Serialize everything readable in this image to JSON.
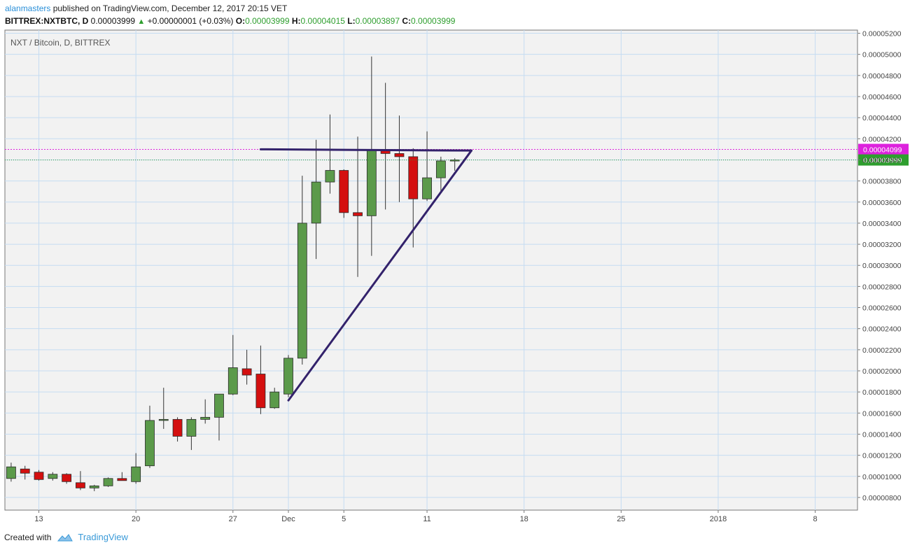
{
  "header": {
    "author": "alanmasters",
    "published_text": " published on TradingView.com, December 12, 2017 20:15 VET"
  },
  "ohlc_bar": {
    "symbol": "BITTREX:NXTBTC, D",
    "last": "0.00003999",
    "change": "+0.00000001 (+0.03%)",
    "o_label": "O:",
    "o": "0.00003999",
    "h_label": "H:",
    "h": "0.00004015",
    "l_label": "L:",
    "l": "0.00003897",
    "c_label": "C:",
    "c": "0.00003999"
  },
  "footer": {
    "created_with": "Created with",
    "brand": "TradingView"
  },
  "colors": {
    "up": "#5b9a4a",
    "down": "#d40f0f",
    "wick": "#333333",
    "trendline": "#33226b",
    "price_line": "#dd22dd",
    "last_price": "#2e9e2e",
    "grid": "#c5dcf2",
    "background": "#f2f2f2"
  },
  "chart_data": {
    "type": "candlestick",
    "title": "NXT / Bitcoin, D, BITTREX",
    "y_range": [
      7e-06,
      5.2e-06
    ],
    "ylim": [
      7e-06,
      5.23e-05
    ],
    "y_ticks": [
      "0.00000800",
      "0.00001000",
      "0.00001200",
      "0.00001400",
      "0.00001600",
      "0.00001800",
      "0.00002000",
      "0.00002200",
      "0.00002400",
      "0.00002600",
      "0.00002800",
      "0.00003000",
      "0.00003200",
      "0.00003400",
      "0.00003600",
      "0.00003800",
      "0.00004000",
      "0.00004200",
      "0.00004400",
      "0.00004600",
      "0.00004800",
      "0.00005000",
      "0.00005200"
    ],
    "x_ticks": [
      {
        "label": "13",
        "day": 13
      },
      {
        "label": "20",
        "day": 20
      },
      {
        "label": "27",
        "day": 27
      },
      {
        "label": "Dec",
        "day": 31
      },
      {
        "label": "5",
        "day": 35
      },
      {
        "label": "11",
        "day": 41
      },
      {
        "label": "18",
        "day": 48
      },
      {
        "label": "25",
        "day": 55
      },
      {
        "label": "2018",
        "day": 62
      },
      {
        "label": "8",
        "day": 69
      }
    ],
    "x_day_range": [
      10.55,
      72.05
    ],
    "grid": true,
    "candles": [
      {
        "date": "2017-11-11",
        "day": 11,
        "o": 9.8e-06,
        "h": 1.13e-05,
        "l": 9.5e-06,
        "c": 1.09e-05
      },
      {
        "date": "2017-11-12",
        "day": 12,
        "o": 1.07e-05,
        "h": 1.1e-05,
        "l": 9.7e-06,
        "c": 1.03e-05
      },
      {
        "date": "2017-11-13",
        "day": 13,
        "o": 1.04e-05,
        "h": 1.06e-05,
        "l": 9.6e-06,
        "c": 9.7e-06
      },
      {
        "date": "2017-11-14",
        "day": 14,
        "o": 9.8e-06,
        "h": 1.04e-05,
        "l": 9.6e-06,
        "c": 1.02e-05
      },
      {
        "date": "2017-11-15",
        "day": 15,
        "o": 1.02e-05,
        "h": 1.03e-05,
        "l": 9.3e-06,
        "c": 9.5e-06
      },
      {
        "date": "2017-11-16",
        "day": 16,
        "o": 9.4e-06,
        "h": 1.05e-05,
        "l": 8.7e-06,
        "c": 8.9e-06
      },
      {
        "date": "2017-11-17",
        "day": 17,
        "o": 8.9e-06,
        "h": 9.2e-06,
        "l": 8.6e-06,
        "c": 9.1e-06
      },
      {
        "date": "2017-11-18",
        "day": 18,
        "o": 9.1e-06,
        "h": 9.9e-06,
        "l": 9e-06,
        "c": 9.8e-06
      },
      {
        "date": "2017-11-19",
        "day": 19,
        "o": 9.8e-06,
        "h": 1.04e-05,
        "l": 9.6e-06,
        "c": 9.6e-06
      },
      {
        "date": "2017-11-20",
        "day": 20,
        "o": 9.5e-06,
        "h": 1.22e-05,
        "l": 9.3e-06,
        "c": 1.09e-05
      },
      {
        "date": "2017-11-21",
        "day": 21,
        "o": 1.1e-05,
        "h": 1.67e-05,
        "l": 1.08e-05,
        "c": 1.53e-05
      },
      {
        "date": "2017-11-22",
        "day": 22,
        "o": 1.53e-05,
        "h": 1.84e-05,
        "l": 1.45e-05,
        "c": 1.54e-05
      },
      {
        "date": "2017-11-23",
        "day": 23,
        "o": 1.54e-05,
        "h": 1.56e-05,
        "l": 1.33e-05,
        "c": 1.38e-05
      },
      {
        "date": "2017-11-24",
        "day": 24,
        "o": 1.38e-05,
        "h": 1.56e-05,
        "l": 1.25e-05,
        "c": 1.54e-05
      },
      {
        "date": "2017-11-25",
        "day": 25,
        "o": 1.54e-05,
        "h": 1.73e-05,
        "l": 1.5e-05,
        "c": 1.56e-05
      },
      {
        "date": "2017-11-26",
        "day": 26,
        "o": 1.56e-05,
        "h": 1.78e-05,
        "l": 1.34e-05,
        "c": 1.78e-05
      },
      {
        "date": "2017-11-27",
        "day": 27,
        "o": 1.78e-05,
        "h": 2.34e-05,
        "l": 1.77e-05,
        "c": 2.03e-05
      },
      {
        "date": "2017-11-28",
        "day": 28,
        "o": 2.02e-05,
        "h": 2.2e-05,
        "l": 1.87e-05,
        "c": 1.96e-05
      },
      {
        "date": "2017-11-29",
        "day": 29,
        "o": 1.97e-05,
        "h": 2.24e-05,
        "l": 1.59e-05,
        "c": 1.65e-05
      },
      {
        "date": "2017-11-30",
        "day": 30,
        "o": 1.65e-05,
        "h": 1.84e-05,
        "l": 1.64e-05,
        "c": 1.8e-05
      },
      {
        "date": "2017-12-01",
        "day": 31,
        "o": 1.78e-05,
        "h": 2.15e-05,
        "l": 1.75e-05,
        "c": 2.12e-05
      },
      {
        "date": "2017-12-02",
        "day": 32,
        "o": 2.12e-05,
        "h": 3.85e-05,
        "l": 2.06e-05,
        "c": 3.4e-05
      },
      {
        "date": "2017-12-03",
        "day": 33,
        "o": 3.4e-05,
        "h": 4.19e-05,
        "l": 3.06e-05,
        "c": 3.79e-05
      },
      {
        "date": "2017-12-04",
        "day": 34,
        "o": 3.79e-05,
        "h": 4.43e-05,
        "l": 3.68e-05,
        "c": 3.9e-05
      },
      {
        "date": "2017-12-05",
        "day": 35,
        "o": 3.9e-05,
        "h": 3.91e-05,
        "l": 3.45e-05,
        "c": 3.5e-05
      },
      {
        "date": "2017-12-06",
        "day": 36,
        "o": 3.5e-05,
        "h": 4.22e-05,
        "l": 2.89e-05,
        "c": 3.47e-05
      },
      {
        "date": "2017-12-07",
        "day": 37,
        "o": 3.47e-05,
        "h": 4.98e-05,
        "l": 3.09e-05,
        "c": 4.09e-05
      },
      {
        "date": "2017-12-08",
        "day": 38,
        "o": 4.09e-05,
        "h": 4.73e-05,
        "l": 3.53e-05,
        "c": 4.06e-05
      },
      {
        "date": "2017-12-09",
        "day": 39,
        "o": 4.06e-05,
        "h": 4.42e-05,
        "l": 3.6e-05,
        "c": 4.03e-05
      },
      {
        "date": "2017-12-10",
        "day": 40,
        "o": 4.03e-05,
        "h": 4.11e-05,
        "l": 3.17e-05,
        "c": 3.63e-05
      },
      {
        "date": "2017-12-11",
        "day": 41,
        "o": 3.63e-05,
        "h": 4.27e-05,
        "l": 3.61e-05,
        "c": 3.83e-05
      },
      {
        "date": "2017-12-12",
        "day": 42,
        "o": 3.83e-05,
        "h": 4.03e-05,
        "l": 3.69e-05,
        "c": 3.99e-05
      },
      {
        "date": "2017-12-13",
        "day": 43,
        "o": 3.999e-05,
        "h": 4.015e-05,
        "l": 3.897e-05,
        "c": 3.999e-05
      }
    ],
    "price_lines": [
      {
        "label": "0.00004099",
        "value": 4.099e-05,
        "style": "dotted-magenta"
      },
      {
        "label": "0.00003999",
        "value": 3.999e-05,
        "style": "dotted-green"
      }
    ],
    "trendlines": [
      {
        "from": {
          "day": 29,
          "value": 4.1e-05
        },
        "to": {
          "day": 44.2,
          "value": 4.088e-05
        }
      },
      {
        "from": {
          "day": 31,
          "value": 1.72e-05
        },
        "to": {
          "day": 44.2,
          "value": 4.088e-05
        }
      }
    ]
  }
}
